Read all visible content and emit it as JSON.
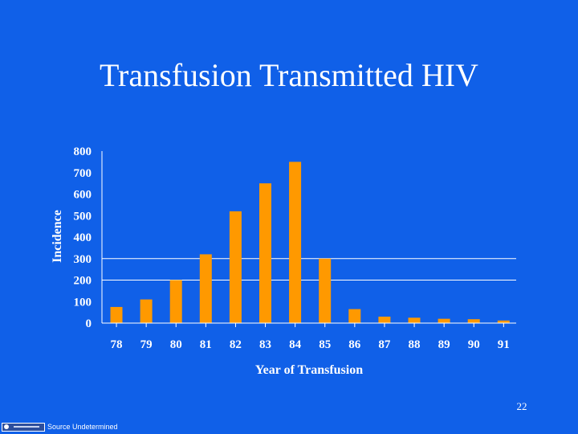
{
  "slide": {
    "title": "Transfusion Transmitted HIV",
    "page_number": "22",
    "source_note": "Source Undetermined"
  },
  "chart_data": {
    "type": "bar",
    "title": "",
    "xlabel": "Year of Transfusion",
    "ylabel": "Incidence",
    "categories": [
      "78",
      "79",
      "80",
      "81",
      "82",
      "83",
      "84",
      "85",
      "86",
      "87",
      "88",
      "89",
      "90",
      "91"
    ],
    "values": [
      75,
      110,
      200,
      320,
      520,
      650,
      750,
      300,
      65,
      30,
      25,
      20,
      18,
      12
    ],
    "ylim": [
      0,
      800
    ],
    "yticks": [
      0,
      100,
      200,
      300,
      400,
      500,
      600,
      700,
      800
    ],
    "gridlines_y": [
      200,
      300
    ],
    "grid": true,
    "bar_color": "#ff9900",
    "axis_color": "#ffffff",
    "background_color": "#1060e8"
  }
}
